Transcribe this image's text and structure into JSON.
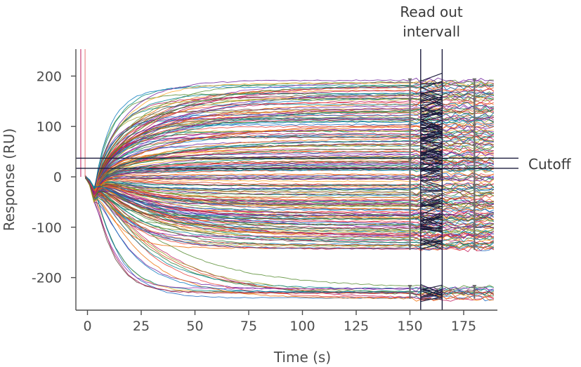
{
  "chart_data": {
    "type": "line",
    "title": "",
    "xlabel": "Time (s)",
    "ylabel": "Response (RU)",
    "xlim": [
      -5,
      190
    ],
    "ylim": [
      -262,
      252
    ],
    "x_ticks": [
      0,
      25,
      50,
      75,
      100,
      125,
      150,
      175
    ],
    "y_ticks": [
      200,
      100,
      0,
      -100,
      -200
    ],
    "grid": false,
    "legend": "none",
    "series_count": 200,
    "baseline_levels_at_end": [
      -238,
      -232,
      -228,
      -224,
      -140,
      -134,
      -128,
      -122,
      -116,
      -110,
      -104,
      -98,
      -92,
      -86,
      -80,
      -74,
      -68,
      -62,
      -56,
      -50,
      -44,
      -38,
      -32,
      -26,
      -20,
      -14,
      -8,
      -2,
      4,
      10,
      16,
      22,
      28,
      34,
      40,
      46,
      52,
      58,
      64,
      70,
      76,
      82,
      88,
      94,
      100,
      106,
      112,
      118,
      124,
      130,
      136,
      142,
      148,
      154,
      160,
      166,
      172,
      178,
      184,
      192
    ],
    "injection_marker_x": [
      -0.5,
      1.5
    ],
    "marker_times": [
      150,
      180
    ],
    "readout_interval": [
      155,
      165
    ],
    "cutoff_lines_y": [
      37,
      17
    ],
    "annotations": {
      "readout": [
        "Read out",
        "intervall"
      ],
      "cutoff": "Cutoff"
    },
    "palette": [
      "#c2185b",
      "#2e7d32",
      "#f9a825",
      "#6a1b9a",
      "#ef6c00",
      "#0277bd",
      "#ad1457",
      "#558b2f",
      "#1565c0",
      "#d84315",
      "#00897b",
      "#8e24aa",
      "#e53935",
      "#9e9d24",
      "#5d4037",
      "#00838f"
    ],
    "readout_color": "#1c1c3c",
    "axis_color": "#4d4d4d"
  }
}
